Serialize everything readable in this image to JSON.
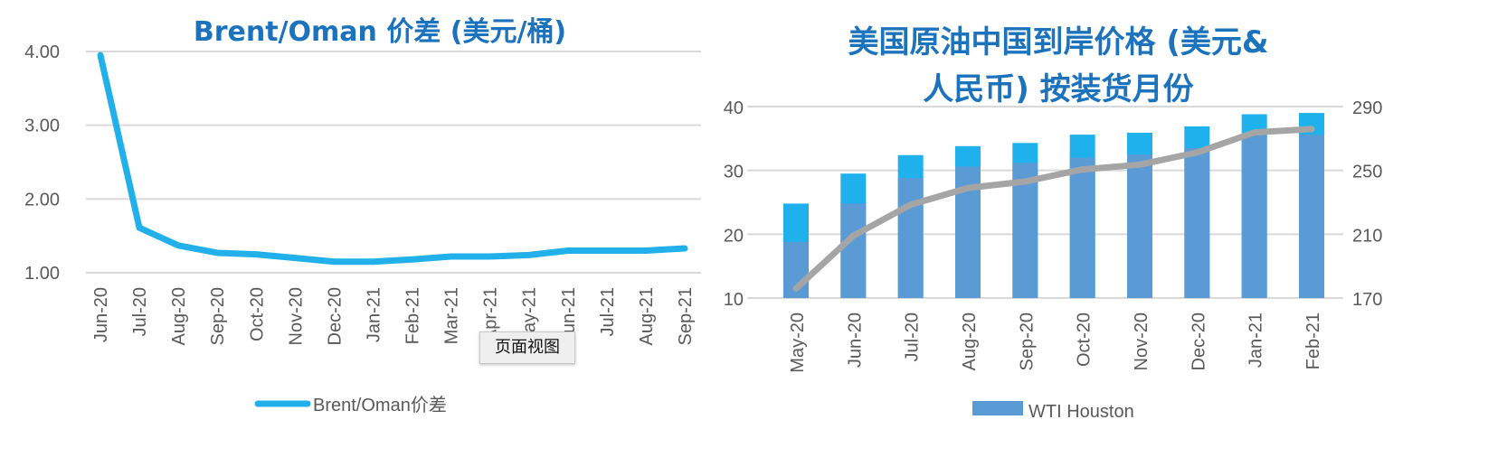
{
  "chart_data": [
    {
      "type": "line",
      "title": "Brent/Oman 价差 (美元/桶)",
      "categories": [
        "Jun-20",
        "Jul-20",
        "Aug-20",
        "Sep-20",
        "Oct-20",
        "Nov-20",
        "Dec-20",
        "Jan-21",
        "Feb-21",
        "Mar-21",
        "Apr-21",
        "May-21",
        "Jun-21",
        "Jul-21",
        "Aug-21",
        "Sep-21"
      ],
      "series": [
        {
          "name": "Brent/Oman价差",
          "values": [
            3.95,
            1.61,
            1.37,
            1.27,
            1.25,
            1.2,
            1.15,
            1.15,
            1.18,
            1.22,
            1.22,
            1.24,
            1.3,
            1.3,
            1.3,
            1.33
          ],
          "color": "#22b0ea"
        }
      ],
      "yticks": [
        "4.00",
        "3.00",
        "2.00",
        "1.00"
      ],
      "ylim": [
        1,
        4
      ],
      "grid": true,
      "legend": "bottom"
    },
    {
      "type": "bar",
      "title_lines": [
        "美国原油中国到岸价格 (美元&",
        "人民币) 按装货月份"
      ],
      "categories": [
        "May-20",
        "Jun-20",
        "Jul-20",
        "Aug-20",
        "Sep-20",
        "Oct-20",
        "Nov-20",
        "Dec-20",
        "Jan-21",
        "Feb-21"
      ],
      "series": [
        {
          "values": [
            24.8,
            29.5,
            32.4,
            33.8,
            34.3,
            35.6,
            35.9,
            36.9,
            38.8,
            39.0
          ],
          "color": "#1fb1ec",
          "axis": "left"
        },
        {
          "name": "WTI Houston",
          "values": [
            18.8,
            24.8,
            28.8,
            30.6,
            31.2,
            32.0,
            32.5,
            33.5,
            35.6,
            35.6
          ],
          "color": "#5b9bd5",
          "axis": "left"
        },
        {
          "type": "line",
          "values": [
            176,
            209,
            228.5,
            239,
            243,
            250.6,
            253.6,
            261.2,
            273.8,
            275.9
          ],
          "color": "#a5a5a5",
          "axis": "right"
        }
      ],
      "yticks_left": [
        "40",
        "30",
        "20",
        "10"
      ],
      "ylim_left": [
        10,
        40
      ],
      "yticks_right": [
        "290",
        "250",
        "210",
        "170"
      ],
      "ylim_right": [
        170,
        290
      ],
      "grid": true,
      "legend": "bottom"
    }
  ],
  "tooltip": {
    "text": "页面视图"
  }
}
